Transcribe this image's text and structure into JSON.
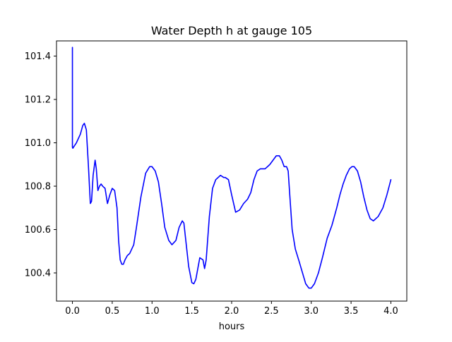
{
  "chart_data": {
    "type": "line",
    "title": "Water Depth h at gauge 105",
    "xlabel": "hours",
    "ylabel": "",
    "xlim": [
      -0.2,
      4.2
    ],
    "ylim": [
      100.27,
      101.47
    ],
    "xticks": [
      0.0,
      0.5,
      1.0,
      1.5,
      2.0,
      2.5,
      3.0,
      3.5,
      4.0
    ],
    "xtick_labels": [
      "0.0",
      "0.5",
      "1.0",
      "1.5",
      "2.0",
      "2.5",
      "3.0",
      "3.5",
      "4.0"
    ],
    "yticks": [
      100.4,
      100.6,
      100.8,
      101.0,
      101.2,
      101.4
    ],
    "ytick_labels": [
      "100.4",
      "100.6",
      "100.8",
      "101.0",
      "101.2",
      "101.4"
    ],
    "grid": false,
    "legend": "none",
    "series": [
      {
        "color": "#0000ff",
        "x": [
          0.0,
          0.0,
          0.005,
          0.05,
          0.1,
          0.13,
          0.15,
          0.175,
          0.2,
          0.225,
          0.24,
          0.26,
          0.285,
          0.3,
          0.32,
          0.34,
          0.36,
          0.38,
          0.41,
          0.44,
          0.47,
          0.5,
          0.53,
          0.56,
          0.58,
          0.6,
          0.62,
          0.64,
          0.66,
          0.69,
          0.72,
          0.77,
          0.8,
          0.86,
          0.92,
          0.97,
          1.0,
          1.04,
          1.08,
          1.12,
          1.16,
          1.21,
          1.25,
          1.3,
          1.34,
          1.38,
          1.4,
          1.43,
          1.46,
          1.5,
          1.525,
          1.55,
          1.58,
          1.6,
          1.64,
          1.66,
          1.68,
          1.72,
          1.76,
          1.8,
          1.86,
          1.9,
          1.92,
          1.96,
          2.0,
          2.05,
          2.1,
          2.15,
          2.2,
          2.24,
          2.28,
          2.32,
          2.36,
          2.42,
          2.48,
          2.52,
          2.56,
          2.6,
          2.63,
          2.66,
          2.69,
          2.71,
          2.73,
          2.76,
          2.8,
          2.85,
          2.89,
          2.93,
          2.97,
          3.0,
          3.04,
          3.09,
          3.14,
          3.2,
          3.26,
          3.32,
          3.36,
          3.4,
          3.44,
          3.48,
          3.51,
          3.54,
          3.58,
          3.62,
          3.66,
          3.7,
          3.74,
          3.78,
          3.84,
          3.9,
          3.95,
          4.0
        ],
        "y": [
          101.44,
          100.98,
          100.975,
          101.0,
          101.04,
          101.08,
          101.09,
          101.06,
          100.9,
          100.72,
          100.73,
          100.85,
          100.92,
          100.88,
          100.78,
          100.8,
          100.81,
          100.8,
          100.79,
          100.72,
          100.76,
          100.79,
          100.78,
          100.7,
          100.55,
          100.46,
          100.44,
          100.44,
          100.46,
          100.48,
          100.49,
          100.53,
          100.6,
          100.75,
          100.86,
          100.89,
          100.89,
          100.87,
          100.82,
          100.72,
          100.61,
          100.55,
          100.53,
          100.55,
          100.61,
          100.64,
          100.63,
          100.53,
          100.43,
          100.355,
          100.35,
          100.37,
          100.43,
          100.47,
          100.46,
          100.42,
          100.46,
          100.66,
          100.79,
          100.83,
          100.85,
          100.84,
          100.84,
          100.83,
          100.76,
          100.68,
          100.69,
          100.72,
          100.74,
          100.77,
          100.83,
          100.87,
          100.88,
          100.88,
          100.9,
          100.92,
          100.94,
          100.94,
          100.92,
          100.89,
          100.89,
          100.87,
          100.76,
          100.6,
          100.51,
          100.45,
          100.4,
          100.35,
          100.33,
          100.33,
          100.35,
          100.4,
          100.47,
          100.56,
          100.62,
          100.7,
          100.76,
          100.81,
          100.85,
          100.88,
          100.89,
          100.89,
          100.87,
          100.82,
          100.75,
          100.69,
          100.65,
          100.64,
          100.66,
          100.7,
          100.76,
          100.83
        ]
      }
    ]
  }
}
